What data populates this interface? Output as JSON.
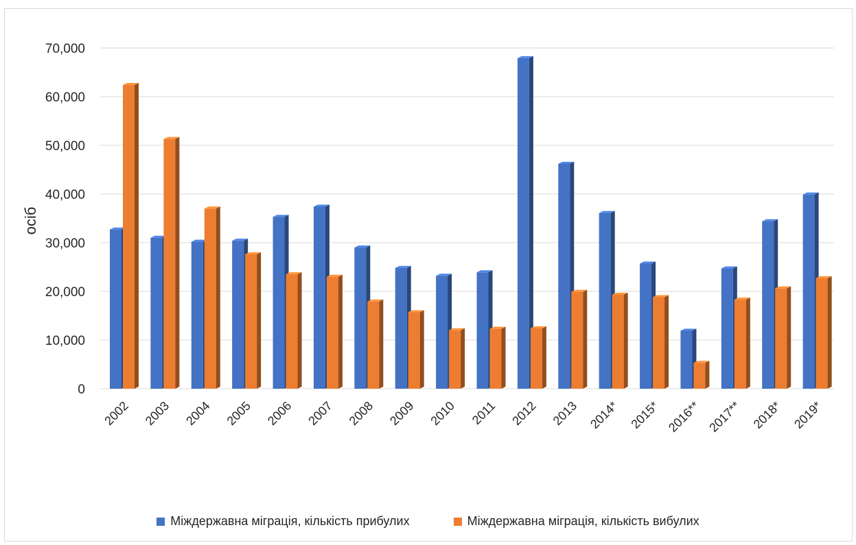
{
  "chart_data": {
    "type": "bar",
    "title": "",
    "xlabel": "",
    "ylabel": "осіб",
    "ylim": [
      0,
      70000
    ],
    "yticks": [
      0,
      10000,
      20000,
      30000,
      40000,
      50000,
      60000,
      70000
    ],
    "ytick_labels": [
      "0",
      "10,000",
      "20,000",
      "30,000",
      "40,000",
      "50,000",
      "60,000",
      "70,000"
    ],
    "grid": true,
    "legend_position": "bottom",
    "categories": [
      "2002",
      "2003",
      "2004",
      "2005",
      "2006",
      "2007",
      "2008",
      "2009",
      "2010",
      "2011",
      "2012",
      "2013",
      "2014*",
      "2015*",
      "2016**",
      "2017**",
      "2018*",
      "2019*"
    ],
    "series": [
      {
        "name": "Міждержавна міграція, кількість прибулих",
        "color": "#4472c4",
        "values": [
          32700,
          31000,
          30200,
          30400,
          35300,
          37400,
          29000,
          24800,
          23200,
          23900,
          67900,
          46200,
          36100,
          25700,
          11900,
          24700,
          34400,
          39900
        ]
      },
      {
        "name": "Міждержавна міграція, кількість вибулих",
        "color": "#ed7d31",
        "values": [
          62400,
          51300,
          37000,
          27600,
          23500,
          23000,
          17900,
          15700,
          12000,
          12300,
          12400,
          19900,
          19300,
          18800,
          5300,
          18300,
          20600,
          22700
        ]
      }
    ]
  }
}
